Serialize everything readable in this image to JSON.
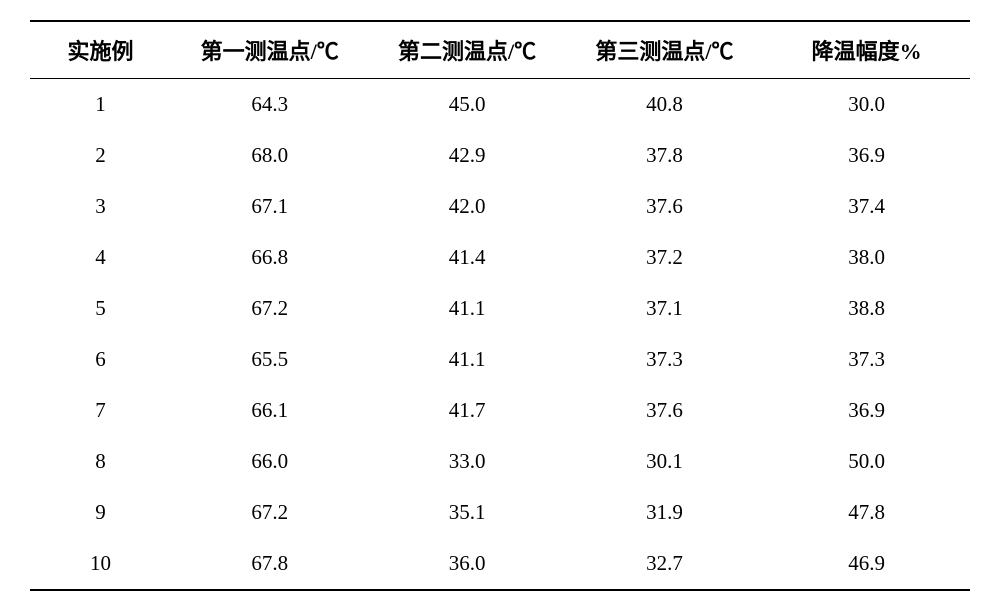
{
  "table": {
    "type": "table",
    "columns": [
      {
        "label": "实施例",
        "width": "15%",
        "align": "center"
      },
      {
        "label": "第一测温点/℃",
        "width": "21%",
        "align": "center"
      },
      {
        "label": "第二测温点/℃",
        "width": "21%",
        "align": "center"
      },
      {
        "label": "第三测温点/℃",
        "width": "21%",
        "align": "center"
      },
      {
        "label": "降温幅度%",
        "width": "22%",
        "align": "center"
      }
    ],
    "rows": [
      [
        "1",
        "64.3",
        "45.0",
        "40.8",
        "30.0"
      ],
      [
        "2",
        "68.0",
        "42.9",
        "37.8",
        "36.9"
      ],
      [
        "3",
        "67.1",
        "42.0",
        "37.6",
        "37.4"
      ],
      [
        "4",
        "66.8",
        "41.4",
        "37.2",
        "38.0"
      ],
      [
        "5",
        "67.2",
        "41.1",
        "37.1",
        "38.8"
      ],
      [
        "6",
        "65.5",
        "41.1",
        "37.3",
        "37.3"
      ],
      [
        "7",
        "66.1",
        "41.7",
        "37.6",
        "36.9"
      ],
      [
        "8",
        "66.0",
        "33.0",
        "30.1",
        "50.0"
      ],
      [
        "9",
        "67.2",
        "35.1",
        "31.9",
        "47.8"
      ],
      [
        "10",
        "67.8",
        "36.0",
        "32.7",
        "46.9"
      ]
    ],
    "header_fontsize": 22,
    "cell_fontsize": 21,
    "header_fontweight": "bold",
    "cell_fontweight": "normal",
    "border_top_color": "#000000",
    "border_top_width": 2.5,
    "header_bottom_border_width": 1.5,
    "border_bottom_width": 2.5,
    "background_color": "#ffffff",
    "text_color": "#000000"
  }
}
